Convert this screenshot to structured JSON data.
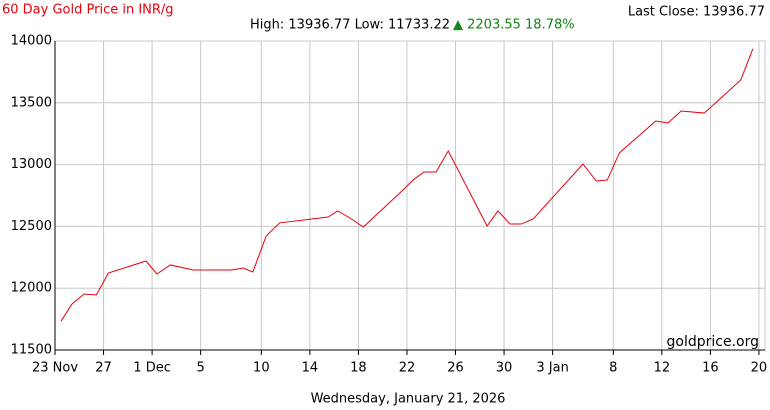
{
  "chart_data": {
    "type": "line",
    "title": "60 Day Gold Price in INR/g",
    "last_close": "Last Close: 13936.77",
    "high_low": "High: 13936.77 Low: 11733.22",
    "change": "▲ 2203.55 18.78%",
    "watermark": "goldprice.org",
    "date_caption": "Wednesday, January 21, 2026",
    "x": [
      0.5,
      1.4,
      2.4,
      3.4,
      4.4,
      7.5,
      8.4,
      9.5,
      11.4,
      14.6,
      15.5,
      16.3,
      17.4,
      18.5,
      22.5,
      23.3,
      24.3,
      25.4,
      28.5,
      29.5,
      30.4,
      31.4,
      32.4,
      35.6,
      36.5,
      37.5,
      38.4,
      39.4,
      43.5,
      44.6,
      45.5,
      46.5,
      49.5,
      50.5,
      51.6,
      53.5,
      56.5,
      57.5
    ],
    "series": [
      {
        "color": "#e8000b",
        "values": [
          11733,
          11872,
          11953,
          11945,
          12123,
          12220,
          12115,
          12188,
          12147,
          12147,
          12163,
          12131,
          12422,
          12528,
          12576,
          12625,
          12568,
          12495,
          12778,
          12875,
          12940,
          12940,
          13110,
          12503,
          12625,
          12519,
          12519,
          12560,
          13005,
          12867,
          12875,
          13094,
          13353,
          13337,
          13434,
          13417,
          13685,
          13937
        ]
      }
    ],
    "xlim": [
      0,
      58.5
    ],
    "xticks": [
      {
        "value": 0,
        "label": "23 Nov"
      },
      {
        "value": 4,
        "label": "27"
      },
      {
        "value": 8,
        "label": "1 Dec"
      },
      {
        "value": 12,
        "label": "5"
      },
      {
        "value": 17,
        "label": "10"
      },
      {
        "value": 21,
        "label": "14"
      },
      {
        "value": 25,
        "label": "18"
      },
      {
        "value": 29,
        "label": "22"
      },
      {
        "value": 33,
        "label": "26"
      },
      {
        "value": 37,
        "label": "30"
      },
      {
        "value": 41,
        "label": "3 Jan"
      },
      {
        "value": 46,
        "label": "8"
      },
      {
        "value": 50,
        "label": "12"
      },
      {
        "value": 54,
        "label": "16"
      },
      {
        "value": 58,
        "label": "20"
      }
    ],
    "ylim": [
      11500,
      14000
    ],
    "yticks": [
      11500,
      12000,
      12500,
      13000,
      13500,
      14000
    ],
    "grid": true
  }
}
